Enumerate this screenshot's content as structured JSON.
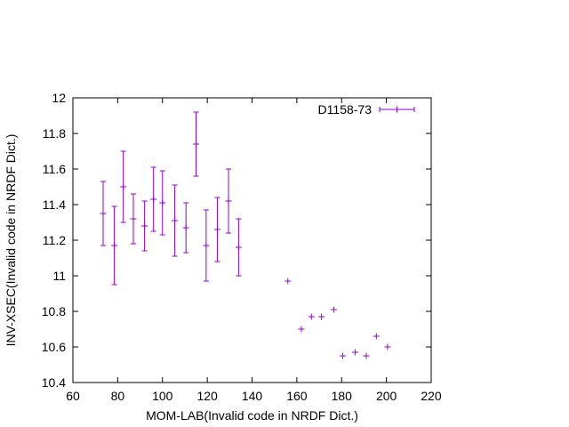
{
  "chart_data": {
    "type": "scatter",
    "title": "",
    "xlabel": "MOM-LAB(Invalid code in NRDF Dict.)",
    "ylabel": "INV-XSEC(Invalid code in NRDF Dict.)",
    "xlim": [
      60,
      220
    ],
    "ylim": [
      10.4,
      12.0
    ],
    "x_ticks": [
      60,
      80,
      100,
      120,
      140,
      160,
      180,
      200,
      220
    ],
    "y_ticks": [
      10.4,
      10.6,
      10.8,
      11.0,
      11.2,
      11.4,
      11.6,
      11.8,
      12.0
    ],
    "x_tick_labels": [
      "60",
      "80",
      "100",
      "120",
      "140",
      "160",
      "180",
      "200",
      "220"
    ],
    "y_tick_labels": [
      "10.4",
      "10.6",
      "10.8",
      "11",
      "11.2",
      "11.4",
      "11.6",
      "11.8",
      "12"
    ],
    "grid": false,
    "legend_position": "top-right",
    "series": [
      {
        "name": "D1158-73",
        "color": "#9400d3",
        "marker": "plus-with-errorbars",
        "points": [
          {
            "x": 73.5,
            "y": 11.35,
            "ylow": 11.17,
            "yhigh": 11.53
          },
          {
            "x": 78.5,
            "y": 11.17,
            "ylow": 10.95,
            "yhigh": 11.39
          },
          {
            "x": 82.5,
            "y": 11.5,
            "ylow": 11.3,
            "yhigh": 11.7
          },
          {
            "x": 87.0,
            "y": 11.32,
            "ylow": 11.18,
            "yhigh": 11.46
          },
          {
            "x": 92.0,
            "y": 11.28,
            "ylow": 11.14,
            "yhigh": 11.42
          },
          {
            "x": 96.0,
            "y": 11.43,
            "ylow": 11.25,
            "yhigh": 11.61
          },
          {
            "x": 100.0,
            "y": 11.41,
            "ylow": 11.23,
            "yhigh": 11.59
          },
          {
            "x": 105.5,
            "y": 11.31,
            "ylow": 11.11,
            "yhigh": 11.51
          },
          {
            "x": 110.5,
            "y": 11.27,
            "ylow": 11.13,
            "yhigh": 11.41
          },
          {
            "x": 115.0,
            "y": 11.74,
            "ylow": 11.56,
            "yhigh": 11.92
          },
          {
            "x": 119.5,
            "y": 11.17,
            "ylow": 10.97,
            "yhigh": 11.37
          },
          {
            "x": 124.5,
            "y": 11.26,
            "ylow": 11.08,
            "yhigh": 11.44
          },
          {
            "x": 129.5,
            "y": 11.42,
            "ylow": 11.24,
            "yhigh": 11.6
          },
          {
            "x": 134.0,
            "y": 11.16,
            "ylow": 11.0,
            "yhigh": 11.32
          },
          {
            "x": 156.0,
            "y": 10.97,
            "ylow": 10.97,
            "yhigh": 10.97
          },
          {
            "x": 162.0,
            "y": 10.7,
            "ylow": 10.7,
            "yhigh": 10.7
          },
          {
            "x": 166.5,
            "y": 10.77,
            "ylow": 10.77,
            "yhigh": 10.77
          },
          {
            "x": 171.0,
            "y": 10.77,
            "ylow": 10.77,
            "yhigh": 10.77
          },
          {
            "x": 176.5,
            "y": 10.81,
            "ylow": 10.81,
            "yhigh": 10.81
          },
          {
            "x": 180.5,
            "y": 10.55,
            "ylow": 10.55,
            "yhigh": 10.55
          },
          {
            "x": 186.0,
            "y": 10.57,
            "ylow": 10.57,
            "yhigh": 10.57
          },
          {
            "x": 191.0,
            "y": 10.55,
            "ylow": 10.55,
            "yhigh": 10.55
          },
          {
            "x": 195.5,
            "y": 10.66,
            "ylow": 10.66,
            "yhigh": 10.66
          },
          {
            "x": 200.5,
            "y": 10.6,
            "ylow": 10.6,
            "yhigh": 10.6
          }
        ]
      }
    ]
  }
}
